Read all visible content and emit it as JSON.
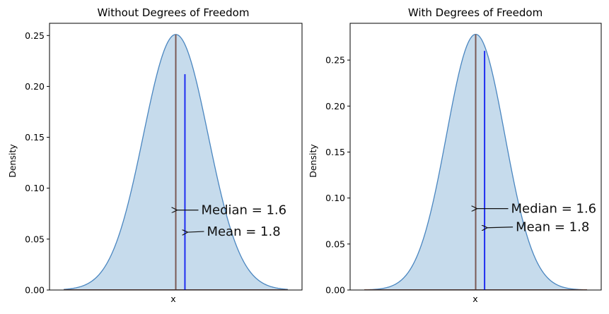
{
  "chart_data": [
    {
      "type": "area",
      "title": "Without Degrees of Freedom",
      "xlabel": "x",
      "ylabel": "Density",
      "ylim": [
        0,
        0.262
      ],
      "yticks": [
        "0.00",
        "0.05",
        "0.10",
        "0.15",
        "0.20",
        "0.25"
      ],
      "ytick_values": [
        0,
        0.05,
        0.1,
        0.15,
        0.2,
        0.25
      ],
      "xlim": [
        -6.2,
        6.2
      ],
      "xticks_visible": false,
      "curve": {
        "peak_x": 0.0,
        "peak_y": 0.251,
        "sd": 1.59
      },
      "fill_color": "#c6dbec",
      "line_color": "#4a86c0",
      "median": {
        "label": "Median = 1.6",
        "x": 0.0,
        "color": "#7b5a55"
      },
      "mean": {
        "label": "Mean = 1.8",
        "x": 0.45,
        "y_top": 0.212,
        "color": "#1f2ef0"
      }
    },
    {
      "type": "area",
      "title": "With Degrees of Freedom",
      "xlabel": "x",
      "ylabel": "Density",
      "ylim": [
        0,
        0.29
      ],
      "yticks": [
        "0.00",
        "0.05",
        "0.10",
        "0.15",
        "0.20",
        "0.25"
      ],
      "ytick_values": [
        0,
        0.05,
        0.1,
        0.15,
        0.2,
        0.25
      ],
      "xlim": [
        -6.2,
        6.2
      ],
      "xticks_visible": false,
      "curve": {
        "peak_x": 0.0,
        "peak_y": 0.278,
        "sd": 1.44
      },
      "fill_color": "#c6dbec",
      "line_color": "#4a86c0",
      "median": {
        "label": "Median = 1.6",
        "x": 0.0,
        "color": "#7b5a55"
      },
      "mean": {
        "label": "Mean = 1.8",
        "x": 0.44,
        "y_top": 0.26,
        "color": "#1f2ef0"
      }
    }
  ]
}
